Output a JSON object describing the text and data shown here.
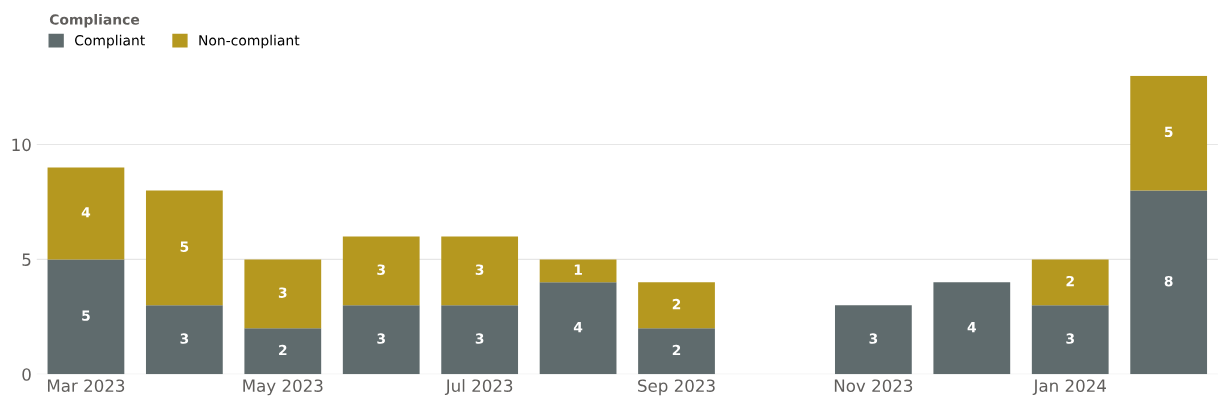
{
  "chart_data": {
    "type": "bar",
    "stacked": true,
    "legend_title": "Compliance",
    "legend": "top left",
    "categories": [
      "Mar 2023",
      null,
      "May 2023",
      null,
      "Jul 2023",
      null,
      "Sep 2023",
      null,
      "Nov 2023",
      null,
      "Jan 2024",
      null
    ],
    "series": [
      {
        "name": "Compliant",
        "color": "#5f6b6d",
        "values": [
          5,
          3,
          2,
          3,
          3,
          4,
          2,
          null,
          3,
          4,
          3,
          8
        ]
      },
      {
        "name": "Non-compliant",
        "color": "#b5981f",
        "values": [
          4,
          5,
          3,
          3,
          3,
          1,
          2,
          null,
          null,
          null,
          2,
          5
        ]
      }
    ],
    "ylim": [
      0,
      13
    ],
    "yticks": [
      0,
      5,
      10
    ],
    "grid": "y",
    "data_labels": true
  }
}
